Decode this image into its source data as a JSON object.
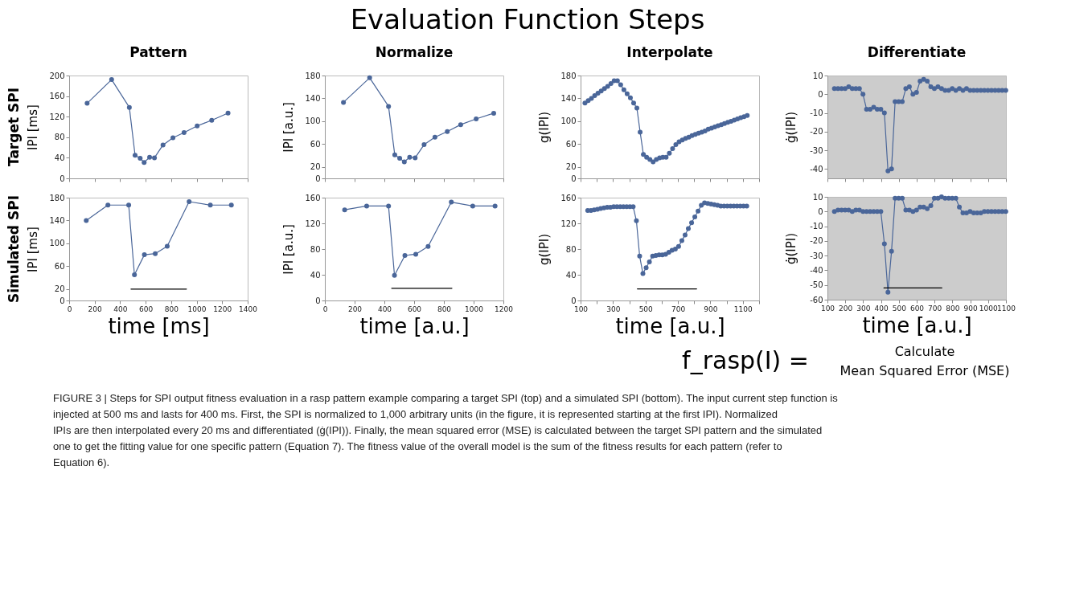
{
  "chart_data": [
    {
      "type": "other",
      "title": "Evaluation Function Steps"
    },
    {
      "type": "line",
      "title": "Pattern",
      "ylabel": "IPI [ms]",
      "annotations": [
        "Target SPI"
      ],
      "marker": "circle",
      "tick_labels": "y",
      "xlim": [
        0,
        1400
      ],
      "xticks": [
        0,
        200,
        400,
        600,
        800,
        1000,
        1200,
        1400
      ],
      "ylim": [
        0,
        200
      ],
      "yticks": [
        0,
        40,
        80,
        120,
        160,
        200
      ],
      "series": [
        {
          "color": "#4a6699",
          "x": [
            141,
            333,
            472,
            517,
            557,
            588,
            631,
            669,
            736,
            814,
            901,
            1004,
            1118,
            1246
          ],
          "values": [
            146,
            192,
            138,
            45,
            39,
            31,
            41,
            40,
            65,
            79,
            89,
            102,
            113,
            127
          ]
        }
      ]
    },
    {
      "type": "line",
      "title": "Normalize",
      "ylabel": "IPI [a.u.]",
      "marker": "circle",
      "tick_labels": "y",
      "xlim": [
        0,
        1200
      ],
      "xticks": [
        0,
        200,
        400,
        600,
        800,
        1000,
        1200
      ],
      "ylim": [
        0,
        180
      ],
      "yticks": [
        0,
        20,
        60,
        100,
        140,
        180
      ],
      "series": [
        {
          "color": "#4a6699",
          "x": [
            125,
            301,
            428,
            470,
            503,
            534,
            570,
            607,
            667,
            740,
            823,
            913,
            1017,
            1135
          ],
          "values": [
            133,
            176,
            126,
            41,
            35,
            29,
            37,
            36,
            59,
            72,
            82,
            94,
            104,
            114
          ]
        }
      ]
    },
    {
      "type": "line",
      "title": "Interpolate",
      "ylabel": "g(IPI)",
      "marker": "circle",
      "tick_labels": "y",
      "xlim": [
        100,
        1200
      ],
      "xticks": [
        100,
        {
          "value": 200,
          "label": null
        },
        300,
        {
          "value": 400,
          "label": null
        },
        500,
        {
          "value": 600,
          "label": null
        },
        700,
        {
          "value": 800,
          "label": null
        },
        900,
        {
          "value": 1000,
          "label": null
        },
        1100,
        {
          "value": 1200,
          "label": null
        }
      ],
      "ylim": [
        0,
        180
      ],
      "yticks": [
        0,
        20,
        60,
        100,
        140,
        180
      ],
      "series": [
        {
          "color": "#4a6699",
          "x": [
            127,
            147,
            167,
            187,
            207,
            227,
            247,
            267,
            287,
            307,
            327,
            347,
            367,
            387,
            407,
            427,
            447,
            467,
            487,
            507,
            527,
            547,
            567,
            587,
            607,
            627,
            647,
            667,
            687,
            707,
            727,
            747,
            767,
            787,
            807,
            827,
            847,
            867,
            887,
            907,
            927,
            947,
            967,
            987,
            1007,
            1027,
            1047,
            1067,
            1087,
            1107,
            1127
          ],
          "values": [
            132,
            136,
            140,
            145,
            149,
            153,
            157,
            161,
            166,
            171,
            171,
            164,
            155,
            148,
            141,
            132,
            123,
            81,
            42,
            37,
            33,
            29,
            33,
            36,
            37,
            37,
            44,
            52,
            59,
            64,
            67,
            70,
            72,
            75,
            77,
            79,
            81,
            83,
            86,
            88,
            90,
            92,
            94,
            96,
            98,
            100,
            102,
            104,
            106,
            108,
            110
          ]
        }
      ]
    },
    {
      "type": "line",
      "title": "Differentiate",
      "ylabel": "ġ(IPI)",
      "marker": "circle",
      "tick_labels": "y",
      "xlim": [
        100,
        1100
      ],
      "xticks": [
        100,
        200,
        300,
        400,
        500,
        600,
        700,
        800,
        900,
        1000,
        1100
      ],
      "ylim": [
        -45,
        10
      ],
      "yticks": [
        -40,
        -30,
        -20,
        -10,
        0,
        10
      ],
      "series": [
        {
          "color": "#4a6699",
          "x": [
            139,
            159,
            179,
            199,
            219,
            239,
            259,
            279,
            299,
            319,
            339,
            359,
            379,
            399,
            419,
            439,
            459,
            479,
            499,
            519,
            539,
            559,
            579,
            599,
            619,
            639,
            659,
            679,
            699,
            719,
            739,
            759,
            779,
            799,
            819,
            839,
            859,
            879,
            899,
            919,
            939,
            959,
            979,
            999,
            1019,
            1039,
            1059,
            1079,
            1099
          ],
          "values": [
            3,
            3,
            3,
            3,
            4,
            3,
            3,
            3,
            0,
            -8,
            -8,
            -7,
            -8,
            -8,
            -10,
            -41,
            -40,
            -4,
            -4,
            -4,
            3,
            4,
            0,
            1,
            7,
            8,
            7,
            4,
            3,
            4,
            3,
            2,
            2,
            3,
            2,
            3,
            2,
            3,
            2,
            2,
            2,
            2,
            2,
            2,
            2,
            2,
            2,
            2,
            2
          ]
        }
      ]
    },
    {
      "type": "line",
      "xlabel": "time [ms]",
      "ylabel": "IPI [ms]",
      "annotations": [
        "Simulated SPI"
      ],
      "marker": "circle",
      "xlim": [
        0,
        1400
      ],
      "xticks": [
        0,
        200,
        400,
        600,
        800,
        1000,
        1200,
        1400
      ],
      "ylim": [
        0,
        180
      ],
      "yticks": [
        0,
        20,
        60,
        100,
        140,
        180
      ],
      "series": [
        {
          "color": "#4a6699",
          "x": [
            134,
            304,
            467,
            512,
            590,
            675,
            769,
            941,
            1107,
            1272
          ],
          "values": [
            140,
            167,
            167,
            45,
            80,
            82,
            95,
            173,
            167,
            167
          ]
        },
        {
          "type": "line",
          "marker": "none",
          "color": "#000000",
          "x": [
            485,
            920
          ],
          "values": [
            20,
            20
          ]
        }
      ]
    },
    {
      "type": "line",
      "xlabel": "time [a.u.]",
      "ylabel": "IPI [a.u.]",
      "marker": "circle",
      "xlim": [
        0,
        1200
      ],
      "xticks": [
        0,
        200,
        400,
        600,
        800,
        1000,
        1200
      ],
      "ylim": [
        0,
        160
      ],
      "yticks": [
        0,
        40,
        80,
        120,
        160
      ],
      "series": [
        {
          "color": "#4a6699",
          "x": [
            133,
            281,
            428,
            468,
            538,
            611,
            694,
            850,
            994,
            1144
          ],
          "values": [
            141,
            147,
            147,
            39,
            70,
            72,
            84,
            153,
            147,
            147
          ]
        },
        {
          "type": "line",
          "marker": "none",
          "color": "#000000",
          "x": [
            449,
            854
          ],
          "values": [
            19,
            19
          ]
        }
      ]
    },
    {
      "type": "line",
      "xlabel": "time [a.u.]",
      "ylabel": "g(IPI)",
      "marker": "circle",
      "xlim": [
        100,
        1200
      ],
      "xticks": [
        100,
        {
          "value": 200,
          "label": null
        },
        300,
        {
          "value": 400,
          "label": null
        },
        500,
        {
          "value": 600,
          "label": null
        },
        700,
        {
          "value": 800,
          "label": null
        },
        900,
        {
          "value": 1000,
          "label": null
        },
        1100,
        {
          "value": 1200,
          "label": null
        }
      ],
      "ylim": [
        0,
        160
      ],
      "yticks": [
        0,
        40,
        80,
        120,
        160
      ],
      "series": [
        {
          "color": "#4a6699",
          "x": [
            144,
            164,
            184,
            204,
            224,
            244,
            264,
            284,
            304,
            324,
            344,
            364,
            384,
            404,
            424,
            444,
            464,
            484,
            504,
            524,
            544,
            564,
            584,
            604,
            624,
            644,
            664,
            684,
            704,
            724,
            744,
            764,
            784,
            804,
            824,
            844,
            864,
            884,
            904,
            924,
            944,
            964,
            984,
            1004,
            1024,
            1044,
            1064,
            1084,
            1104,
            1124
          ],
          "values": [
            140,
            140,
            141,
            142,
            143,
            144,
            145,
            145,
            146,
            146,
            146,
            146,
            146,
            146,
            146,
            124,
            69,
            42,
            51,
            60,
            69,
            70,
            71,
            71,
            72,
            75,
            78,
            80,
            84,
            93,
            102,
            112,
            121,
            130,
            139,
            148,
            152,
            151,
            150,
            149,
            148,
            147,
            147,
            147,
            147,
            147,
            147,
            147,
            147,
            147
          ]
        },
        {
          "type": "line",
          "marker": "none",
          "color": "#000000",
          "x": [
            450,
            815
          ],
          "values": [
            18,
            18
          ]
        }
      ]
    },
    {
      "type": "line",
      "xlabel": "time [a.u.]",
      "ylabel": "ġ(IPI)",
      "marker": "circle",
      "xlim": [
        100,
        1100
      ],
      "xticks": [
        100,
        200,
        300,
        400,
        500,
        600,
        700,
        800,
        900,
        1000,
        1100
      ],
      "ylim": [
        -60,
        10
      ],
      "yticks": [
        -60,
        -50,
        -40,
        -30,
        -20,
        -10,
        0,
        10
      ],
      "series": [
        {
          "color": "#4a6699",
          "x": [
            139,
            159,
            179,
            199,
            219,
            239,
            259,
            279,
            299,
            319,
            339,
            359,
            379,
            399,
            419,
            439,
            459,
            479,
            499,
            519,
            539,
            559,
            579,
            599,
            619,
            639,
            659,
            679,
            699,
            719,
            739,
            759,
            779,
            799,
            819,
            839,
            859,
            879,
            899,
            919,
            939,
            959,
            979,
            999,
            1019,
            1039,
            1059,
            1079,
            1099
          ],
          "values": [
            0,
            1,
            1,
            1,
            1,
            0,
            1,
            1,
            0,
            0,
            0,
            0,
            0,
            0,
            -22,
            -55,
            -27,
            9,
            9,
            9,
            1,
            1,
            0,
            1,
            3,
            3,
            2,
            4,
            9,
            9,
            10,
            9,
            9,
            9,
            9,
            3,
            -1,
            -1,
            0,
            -1,
            -1,
            -1,
            0,
            0,
            0,
            0,
            0,
            0,
            0
          ]
        },
        {
          "type": "line",
          "marker": "none",
          "color": "#000000",
          "x": [
            416,
            741
          ],
          "values": [
            -52,
            -52
          ]
        }
      ]
    },
    {
      "type": "other",
      "annotations": [
        "f_rasp(I) =",
        "Calculate",
        "Mean Squared Error (MSE)",
        "FIGURE 3 | Steps for SPI output fitness evaluation in a rasp pattern example comparing a target SPI (top) and a simulated SPI (bottom). The input current step function is injected at 500 ms and lasts for 400 ms. First, the SPI is normalized to 1,000 arbitrary units (in the figure, it is represented starting at the first IPI). Normalized IPIs are then interpolated every 20 ms and differentiated (ġ(IPI)). Finally, the mean squared error (MSE) is calculated between the target SPI pattern and the simulated one to get the fitting value for one specific pattern (Equation 7). The fitness value of the overall model is the sum of the fitness results for each pattern (refer to Equation 6)."
      ]
    }
  ]
}
